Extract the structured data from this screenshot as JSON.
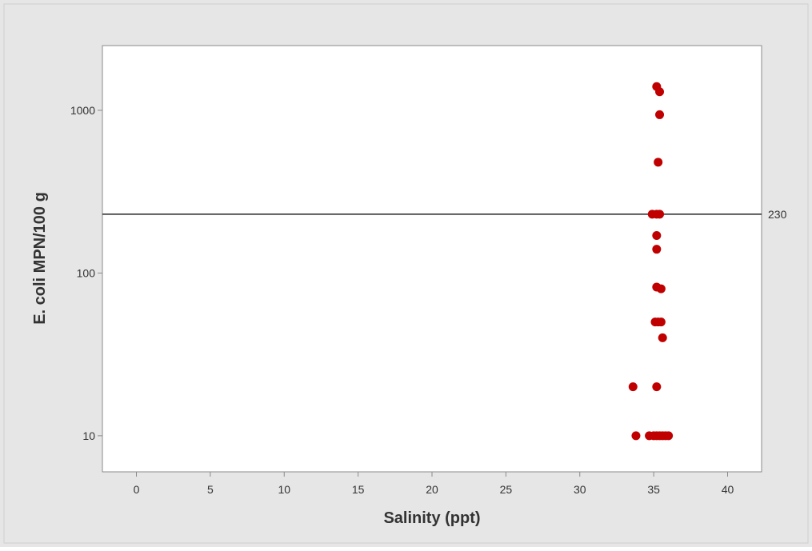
{
  "chart_data": {
    "type": "scatter",
    "title": "",
    "xlabel": "Salinity (ppt)",
    "ylabel": "E. coli MPN/100 g",
    "xlim": [
      -2.3,
      42.3
    ],
    "ylim": [
      6,
      2500
    ],
    "y_scale": "log",
    "grid": false,
    "legend": "none",
    "x_ticks": [
      0,
      5,
      10,
      15,
      20,
      25,
      30,
      35,
      40
    ],
    "y_ticks": [
      10,
      100,
      1000
    ],
    "x_tick_labels": [
      "0",
      "5",
      "10",
      "15",
      "20",
      "25",
      "30",
      "35",
      "40"
    ],
    "y_tick_labels": [
      "10",
      "100",
      "1000"
    ],
    "reference_line": {
      "y": 230,
      "label": "230",
      "color": "#333333"
    },
    "marker_color": "#c00000",
    "points": [
      {
        "x": 35.2,
        "y": 1400
      },
      {
        "x": 35.4,
        "y": 1300
      },
      {
        "x": 35.4,
        "y": 940
      },
      {
        "x": 35.3,
        "y": 480
      },
      {
        "x": 34.9,
        "y": 230
      },
      {
        "x": 35.2,
        "y": 230
      },
      {
        "x": 35.4,
        "y": 230
      },
      {
        "x": 35.2,
        "y": 170
      },
      {
        "x": 35.2,
        "y": 140
      },
      {
        "x": 35.2,
        "y": 82
      },
      {
        "x": 35.5,
        "y": 80
      },
      {
        "x": 35.1,
        "y": 50
      },
      {
        "x": 35.3,
        "y": 50
      },
      {
        "x": 35.5,
        "y": 50
      },
      {
        "x": 35.6,
        "y": 40
      },
      {
        "x": 33.6,
        "y": 20
      },
      {
        "x": 35.2,
        "y": 20
      },
      {
        "x": 33.8,
        "y": 10
      },
      {
        "x": 34.7,
        "y": 10
      },
      {
        "x": 35.0,
        "y": 10
      },
      {
        "x": 35.2,
        "y": 10
      },
      {
        "x": 35.4,
        "y": 10
      },
      {
        "x": 35.6,
        "y": 10
      },
      {
        "x": 35.8,
        "y": 10
      },
      {
        "x": 36.0,
        "y": 10
      }
    ]
  },
  "colors": {
    "outer_background": "#e6e6e6",
    "plot_background": "#ffffff",
    "axis": "#8a8a8a",
    "text": "#333333"
  }
}
